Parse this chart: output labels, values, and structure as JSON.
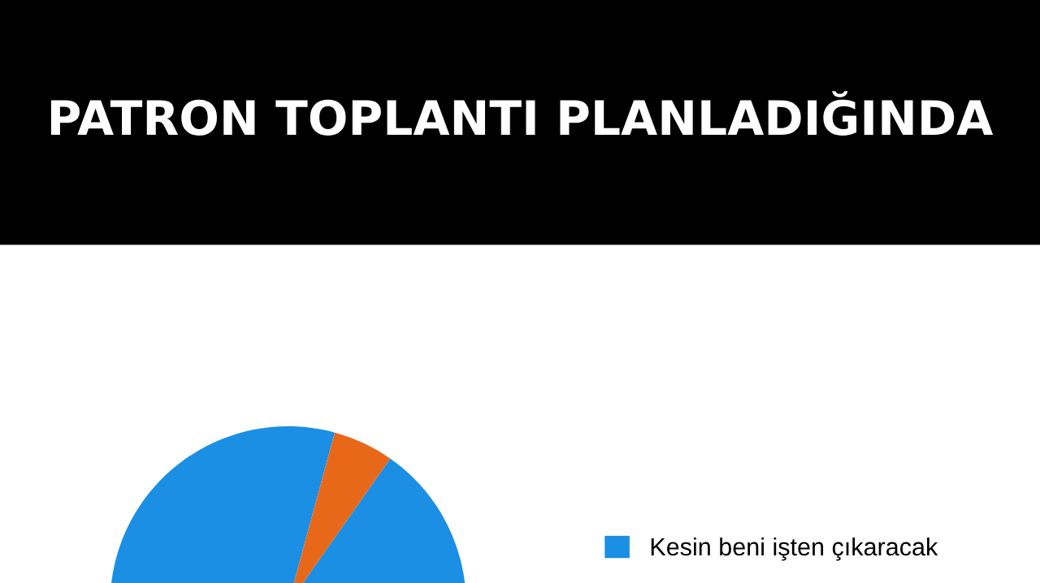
{
  "chart_data": {
    "type": "pie",
    "title": "PATRON TOPLANTI PLANLADIĞINDA",
    "categories": [
      "Kesin beni işten çıkaracak",
      null
    ],
    "values": [
      94.5,
      5.5
    ],
    "colors": [
      "#1a8fe3",
      "#e8681a"
    ],
    "legend": "right"
  }
}
